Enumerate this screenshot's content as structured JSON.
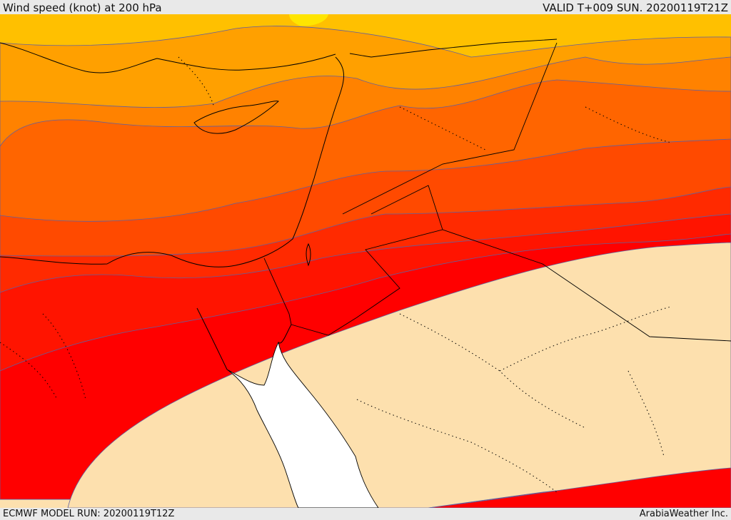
{
  "header": {
    "title": "Wind speed (knot) at 200 hPa",
    "valid": "VALID T+009 SUN. 20200119T21Z"
  },
  "footer": {
    "model_run": "ECMWF MODEL RUN: 20200119T12Z",
    "brand": "ArabiaWeather Inc."
  },
  "map": {
    "colors": {
      "band_1": "#ffe500",
      "band_2": "#ffc000",
      "band_3": "#ffa000",
      "band_4": "#ff8200",
      "band_5": "#ff6500",
      "band_6": "#ff4a00",
      "band_7": "#ff2a00",
      "band_8": "#ff0000",
      "calm": "#fde0ae",
      "sea": "#ffffff",
      "coast": "#000000",
      "contour": "#6060a0"
    }
  }
}
